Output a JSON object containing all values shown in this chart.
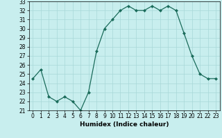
{
  "x": [
    0,
    1,
    2,
    3,
    4,
    5,
    6,
    7,
    8,
    9,
    10,
    11,
    12,
    13,
    14,
    15,
    16,
    17,
    18,
    19,
    20,
    21,
    22,
    23
  ],
  "y": [
    24.5,
    25.5,
    22.5,
    22.0,
    22.5,
    22.0,
    21.0,
    23.0,
    27.5,
    30.0,
    31.0,
    32.0,
    32.5,
    32.0,
    32.0,
    32.5,
    32.0,
    32.5,
    32.0,
    29.5,
    27.0,
    25.0,
    24.5,
    24.5
  ],
  "line_color": "#1a6b5a",
  "marker": "D",
  "markersize": 2,
  "linewidth": 0.9,
  "bg_color": "#c8eeee",
  "grid_color": "#a8d8d8",
  "xlabel": "Humidex (Indice chaleur)",
  "xlim": [
    -0.5,
    23.5
  ],
  "ylim": [
    21,
    33
  ],
  "yticks": [
    21,
    22,
    23,
    24,
    25,
    26,
    27,
    28,
    29,
    30,
    31,
    32,
    33
  ],
  "xticks": [
    0,
    1,
    2,
    3,
    4,
    5,
    6,
    7,
    8,
    9,
    10,
    11,
    12,
    13,
    14,
    15,
    16,
    17,
    18,
    19,
    20,
    21,
    22,
    23
  ],
  "tick_fontsize": 5.5,
  "xlabel_fontsize": 6.5
}
